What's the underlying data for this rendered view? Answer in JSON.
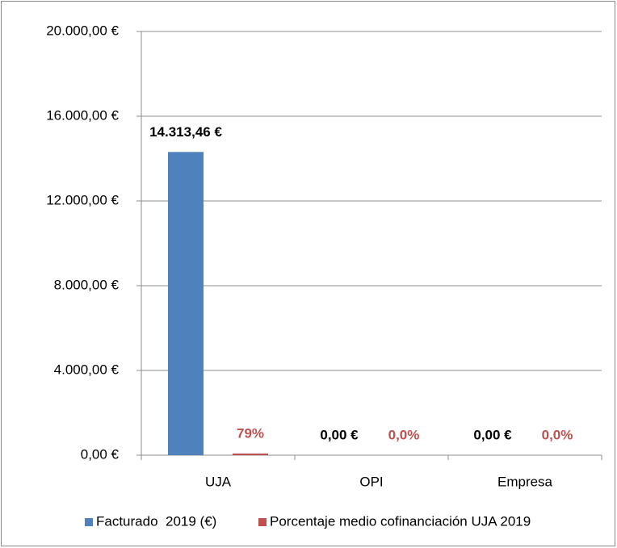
{
  "chart_data": {
    "type": "bar",
    "categories": [
      "UJA",
      "OPI",
      "Empresa"
    ],
    "series": [
      {
        "name": "Facturado  2019 (€)",
        "color": "#4f81bd",
        "values": [
          14313.46,
          0,
          0
        ],
        "value_labels": [
          "14.313,46 €",
          "0,00 €",
          "0,00 €"
        ]
      },
      {
        "name": "Porcentaje medio cofinanciación UJA 2019",
        "color": "#c0504d",
        "values": [
          79,
          0,
          0
        ],
        "value_labels": [
          "79%",
          "0,0%",
          "0,0%"
        ]
      }
    ],
    "ylim": [
      0,
      20000
    ],
    "yticks": [
      {
        "value": 0,
        "label": "0,00 €"
      },
      {
        "value": 4000,
        "label": "4.000,00 €"
      },
      {
        "value": 8000,
        "label": "8.000,00 €"
      },
      {
        "value": 12000,
        "label": "12.000,00 €"
      },
      {
        "value": 16000,
        "label": "16.000,00 €"
      },
      {
        "value": 20000,
        "label": "20.000,00 €"
      }
    ],
    "grid": true,
    "legend": "bottom"
  }
}
